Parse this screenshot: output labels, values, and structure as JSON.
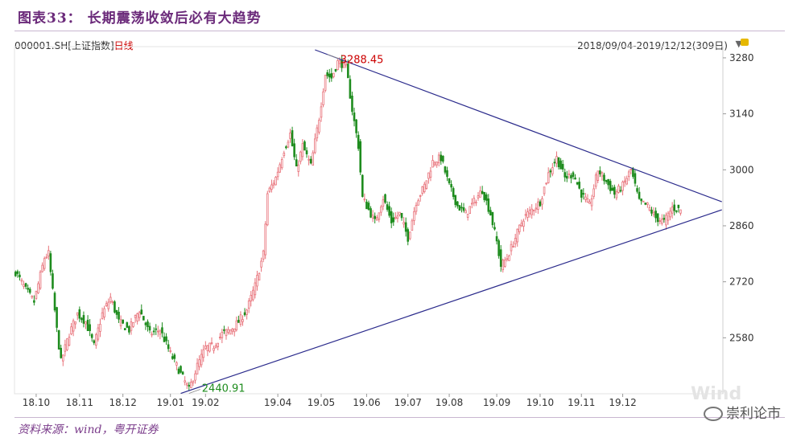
{
  "header": {
    "title": "图表33： 长期震荡收敛后必有大趋势",
    "code": "000001.SH",
    "index_name": "[上证指数]",
    "period": "日线",
    "date_range": "2018/09/04-2019/12/12(309日)"
  },
  "footer": {
    "source": "资料来源：wind，粤开证券",
    "brand": "崇利论市",
    "watermark": "Wind"
  },
  "colors": {
    "up": "#e8727a",
    "down": "#1e8c1e",
    "trend": "#2b2b8c",
    "peak_label": "#cc0000",
    "low_label": "#1e8c1e"
  },
  "chart_data": {
    "type": "candlestick",
    "title": "图表33： 长期震荡收敛后必有大趋势",
    "y_ticks": [
      2580,
      2720,
      2860,
      3000,
      3140,
      3280
    ],
    "ylim": [
      2440,
      3300
    ],
    "x_ticks": [
      "18.10",
      "18.11",
      "18.12",
      "19.01",
      "19.02",
      "19.04",
      "19.05",
      "19.06",
      "19.07",
      "19.08",
      "19.09",
      "19.10",
      "19.11",
      "19.12"
    ],
    "x_tick_index": [
      10,
      31,
      52,
      75,
      92,
      127,
      148,
      170,
      190,
      210,
      233,
      254,
      274,
      294
    ],
    "annotations": [
      {
        "text": "3288.45",
        "index": 151,
        "value": 3288.45
      },
      {
        "text": "2440.91",
        "index": 84,
        "value": 2440.91
      }
    ],
    "trend_lines": [
      {
        "name": "upper",
        "from": {
          "index": 145,
          "value": 3300
        },
        "to": {
          "index": 342,
          "value": 2920
        }
      },
      {
        "name": "lower",
        "from": {
          "index": 80,
          "value": 2440.91
        },
        "to": {
          "index": 342,
          "value": 2900
        }
      }
    ],
    "anchors": [
      [
        0,
        2745
      ],
      [
        5,
        2700
      ],
      [
        9,
        2670
      ],
      [
        14,
        2780
      ],
      [
        16,
        2790
      ],
      [
        20,
        2600
      ],
      [
        22,
        2520
      ],
      [
        26,
        2590
      ],
      [
        30,
        2640
      ],
      [
        34,
        2620
      ],
      [
        38,
        2560
      ],
      [
        42,
        2640
      ],
      [
        46,
        2680
      ],
      [
        50,
        2620
      ],
      [
        55,
        2600
      ],
      [
        60,
        2650
      ],
      [
        65,
        2590
      ],
      [
        70,
        2600
      ],
      [
        75,
        2540
      ],
      [
        79,
        2500
      ],
      [
        84,
        2450
      ],
      [
        88,
        2510
      ],
      [
        92,
        2555
      ],
      [
        96,
        2560
      ],
      [
        100,
        2590
      ],
      [
        104,
        2600
      ],
      [
        108,
        2620
      ],
      [
        112,
        2650
      ],
      [
        116,
        2710
      ],
      [
        120,
        2790
      ],
      [
        122,
        2940
      ],
      [
        126,
        2980
      ],
      [
        130,
        3050
      ],
      [
        133,
        3090
      ],
      [
        136,
        3000
      ],
      [
        139,
        3060
      ],
      [
        143,
        3010
      ],
      [
        147,
        3130
      ],
      [
        150,
        3240
      ],
      [
        153,
        3230
      ],
      [
        156,
        3270
      ],
      [
        160,
        3260
      ],
      [
        163,
        3150
      ],
      [
        166,
        3060
      ],
      [
        168,
        2930
      ],
      [
        171,
        2900
      ],
      [
        174,
        2870
      ],
      [
        178,
        2930
      ],
      [
        182,
        2870
      ],
      [
        186,
        2890
      ],
      [
        190,
        2830
      ],
      [
        194,
        2920
      ],
      [
        198,
        2960
      ],
      [
        202,
        3020
      ],
      [
        206,
        3030
      ],
      [
        210,
        2960
      ],
      [
        214,
        2910
      ],
      [
        218,
        2890
      ],
      [
        222,
        2920
      ],
      [
        226,
        2950
      ],
      [
        230,
        2890
      ],
      [
        233,
        2820
      ],
      [
        235,
        2760
      ],
      [
        238,
        2780
      ],
      [
        242,
        2830
      ],
      [
        246,
        2880
      ],
      [
        250,
        2900
      ],
      [
        254,
        2920
      ],
      [
        258,
        2990
      ],
      [
        262,
        3030
      ],
      [
        266,
        2980
      ],
      [
        270,
        2990
      ],
      [
        274,
        2940
      ],
      [
        278,
        2910
      ],
      [
        282,
        3000
      ],
      [
        286,
        2970
      ],
      [
        290,
        2940
      ],
      [
        294,
        2960
      ],
      [
        298,
        3000
      ],
      [
        302,
        2920
      ],
      [
        306,
        2910
      ],
      [
        310,
        2880
      ],
      [
        314,
        2870
      ],
      [
        318,
        2905
      ],
      [
        322,
        2900
      ]
    ]
  }
}
